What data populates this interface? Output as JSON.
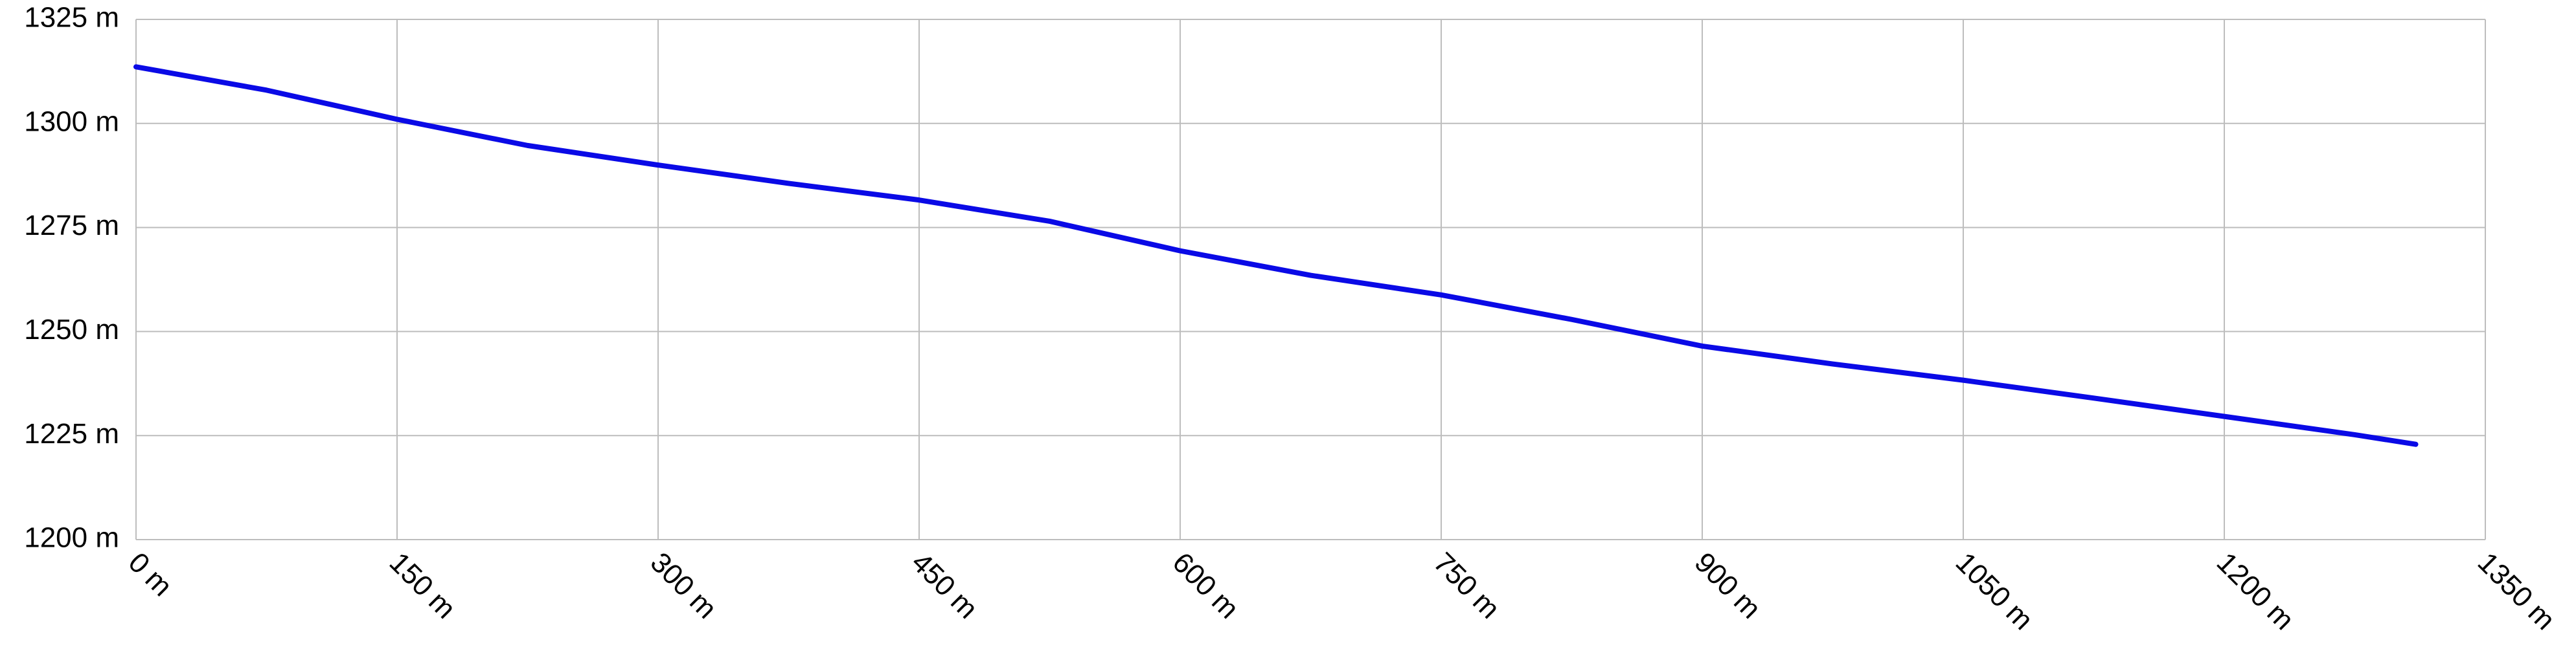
{
  "chart_data": {
    "type": "line",
    "x": [
      0,
      75,
      150,
      225,
      300,
      375,
      450,
      525,
      600,
      675,
      750,
      825,
      900,
      975,
      1050,
      1125,
      1200,
      1275,
      1310
    ],
    "series": [
      {
        "color": "#0a0ae6",
        "values": [
          1313.6,
          1308,
          1301,
          1294.7,
          1290,
          1285.6,
          1281.6,
          1276.5,
          1269.4,
          1263.5,
          1258.8,
          1252.9,
          1246.5,
          1242.2,
          1238.3,
          1234,
          1229.6,
          1225.2,
          1222.9
        ]
      }
    ],
    "xlim": [
      0,
      1350
    ],
    "xticks": [
      {
        "value": 0,
        "label": "0 m"
      },
      {
        "value": 150,
        "label": "150 m"
      },
      {
        "value": 300,
        "label": "300 m"
      },
      {
        "value": 450,
        "label": "450 m"
      },
      {
        "value": 600,
        "label": "600 m"
      },
      {
        "value": 750,
        "label": "750 m"
      },
      {
        "value": 900,
        "label": "900 m"
      },
      {
        "value": 1050,
        "label": "1050 m"
      },
      {
        "value": 1200,
        "label": "1200 m"
      },
      {
        "value": 1350,
        "label": "1350 m"
      }
    ],
    "ylim": [
      1200,
      1325
    ],
    "yticks": [
      {
        "value": 1200,
        "label": "1200 m"
      },
      {
        "value": 1225,
        "label": "1225 m"
      },
      {
        "value": 1250,
        "label": "1250 m"
      },
      {
        "value": 1275,
        "label": "1275 m"
      },
      {
        "value": 1300,
        "label": "1300 m"
      },
      {
        "value": 1325,
        "label": "1325 m"
      }
    ],
    "grid": true
  }
}
